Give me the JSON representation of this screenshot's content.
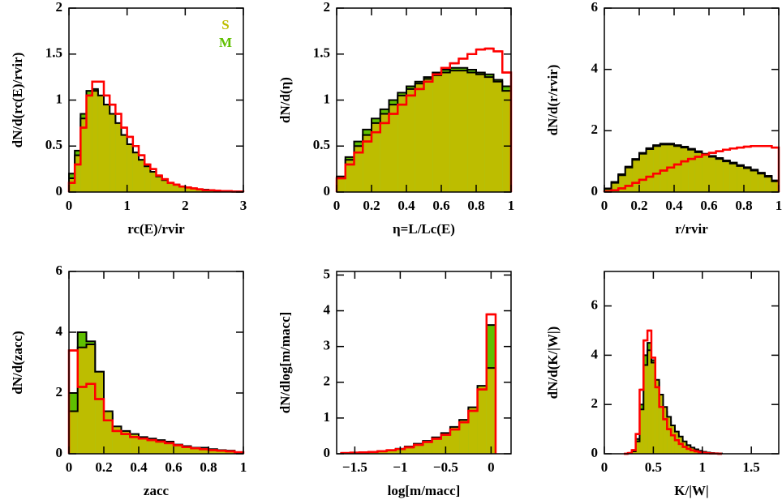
{
  "chart_data": [
    {
      "type": "histogram",
      "xlabel": "rc(E)/rvir",
      "ylabel": "dN/d(rc(E)/rvir)",
      "legend": "upper right",
      "xlim": [
        0,
        3
      ],
      "ylim": [
        0,
        2
      ],
      "xticks": [
        0,
        1,
        2,
        3
      ],
      "yticks": [
        0,
        0.5,
        1,
        1.5,
        2
      ],
      "bins": [
        0,
        0.1,
        0.2,
        0.3,
        0.4,
        0.5,
        0.6,
        0.7,
        0.8,
        0.9,
        1,
        1.1,
        1.2,
        1.3,
        1.4,
        1.5,
        1.6,
        1.7,
        1.8,
        1.9,
        2,
        2.1,
        2.2,
        2.3,
        2.4,
        2.5,
        2.6,
        2.7,
        2.8,
        2.9,
        3
      ],
      "series": [
        {
          "name": "M",
          "color": "#5fbf00",
          "outline": "#000000",
          "fill": true,
          "values": [
            0.2,
            0.45,
            0.85,
            1.1,
            1.12,
            1.05,
            0.95,
            0.85,
            0.74,
            0.62,
            0.52,
            0.43,
            0.35,
            0.28,
            0.22,
            0.17,
            0.13,
            0.1,
            0.08,
            0.06,
            0.05,
            0.04,
            0.03,
            0.025,
            0.02,
            0.015,
            0.01,
            0.01,
            0.005,
            0.005
          ]
        },
        {
          "name": "S",
          "color": "#bdbd00",
          "outline": "#000000",
          "fill": true,
          "values": [
            0.15,
            0.4,
            0.8,
            1.05,
            1.1,
            1.05,
            0.95,
            0.85,
            0.75,
            0.62,
            0.52,
            0.43,
            0.35,
            0.28,
            0.22,
            0.17,
            0.13,
            0.1,
            0.08,
            0.06,
            0.05,
            0.04,
            0.03,
            0.025,
            0.02,
            0.015,
            0.01,
            0.01,
            0.005,
            0.005
          ]
        },
        {
          "color": "#ff0000",
          "fill": false,
          "values": [
            0.1,
            0.3,
            0.7,
            1.05,
            1.2,
            1.2,
            1.05,
            0.95,
            0.85,
            0.7,
            0.6,
            0.5,
            0.4,
            0.3,
            0.25,
            0.18,
            0.14,
            0.1,
            0.08,
            0.06,
            0.05,
            0.04,
            0.03,
            0.02,
            0.02,
            0.015,
            0.01,
            0.01,
            0.005,
            0.005
          ]
        }
      ]
    },
    {
      "type": "histogram",
      "xlabel": "η=L/Lc(E)",
      "ylabel": "dN/d(η)",
      "xlim": [
        0,
        1
      ],
      "ylim": [
        0,
        2
      ],
      "xticks": [
        0,
        0.2,
        0.4,
        0.6,
        0.8,
        1
      ],
      "yticks": [
        0,
        0.5,
        1,
        1.5,
        2
      ],
      "bins": [
        0,
        0.05,
        0.1,
        0.15,
        0.2,
        0.25,
        0.3,
        0.35,
        0.4,
        0.45,
        0.5,
        0.55,
        0.6,
        0.65,
        0.7,
        0.75,
        0.8,
        0.85,
        0.9,
        0.95,
        1
      ],
      "series": [
        {
          "name": "M",
          "color": "#5fbf00",
          "outline": "#000000",
          "fill": true,
          "values": [
            0.17,
            0.38,
            0.55,
            0.68,
            0.8,
            0.9,
            1.0,
            1.08,
            1.15,
            1.2,
            1.25,
            1.3,
            1.33,
            1.35,
            1.35,
            1.33,
            1.3,
            1.28,
            1.22,
            1.15
          ]
        },
        {
          "name": "S",
          "color": "#bdbd00",
          "outline": "#000000",
          "fill": true,
          "values": [
            0.15,
            0.35,
            0.5,
            0.62,
            0.75,
            0.85,
            0.95,
            1.05,
            1.12,
            1.18,
            1.23,
            1.27,
            1.3,
            1.32,
            1.32,
            1.3,
            1.28,
            1.25,
            1.2,
            1.1
          ]
        },
        {
          "color": "#ff0000",
          "fill": false,
          "values": [
            0.15,
            0.3,
            0.43,
            0.55,
            0.65,
            0.75,
            0.85,
            0.95,
            1.05,
            1.12,
            1.2,
            1.28,
            1.35,
            1.4,
            1.45,
            1.5,
            1.55,
            1.56,
            1.53,
            1.3
          ]
        }
      ]
    },
    {
      "type": "histogram",
      "xlabel": "r/rvir",
      "ylabel": "dN/d(r/rvir)",
      "xlim": [
        0,
        1
      ],
      "ylim": [
        0,
        6
      ],
      "xticks": [
        0,
        0.2,
        0.4,
        0.6,
        0.8,
        1
      ],
      "yticks": [
        0,
        2,
        4,
        6
      ],
      "bins": [
        0,
        0.04,
        0.08,
        0.12,
        0.16,
        0.2,
        0.24,
        0.28,
        0.32,
        0.36,
        0.4,
        0.44,
        0.48,
        0.52,
        0.56,
        0.6,
        0.64,
        0.68,
        0.72,
        0.76,
        0.8,
        0.84,
        0.88,
        0.92,
        0.96,
        1
      ],
      "series": [
        {
          "name": "M",
          "color": "#5fbf00",
          "outline": "#000000",
          "fill": true,
          "values": [
            0.12,
            0.33,
            0.58,
            0.83,
            1.08,
            1.28,
            1.43,
            1.53,
            1.58,
            1.58,
            1.53,
            1.48,
            1.41,
            1.33,
            1.25,
            1.18,
            1.11,
            1.03,
            0.96,
            0.88,
            0.81,
            0.73,
            0.63,
            0.53,
            0.38
          ]
        },
        {
          "name": "S",
          "color": "#bdbd00",
          "outline": "#000000",
          "fill": true,
          "values": [
            0.1,
            0.3,
            0.55,
            0.8,
            1.05,
            1.25,
            1.4,
            1.5,
            1.55,
            1.55,
            1.5,
            1.45,
            1.38,
            1.3,
            1.22,
            1.15,
            1.08,
            1.0,
            0.93,
            0.85,
            0.78,
            0.7,
            0.6,
            0.5,
            0.35
          ]
        },
        {
          "color": "#ff0000",
          "fill": false,
          "values": [
            0.02,
            0.06,
            0.12,
            0.2,
            0.3,
            0.4,
            0.5,
            0.6,
            0.7,
            0.8,
            0.9,
            1.0,
            1.08,
            1.15,
            1.22,
            1.28,
            1.33,
            1.38,
            1.42,
            1.45,
            1.48,
            1.5,
            1.5,
            1.5,
            1.45
          ]
        }
      ]
    },
    {
      "type": "histogram",
      "xlabel": "zacc",
      "ylabel": "dN/d(zacc)",
      "xlim": [
        0,
        1
      ],
      "ylim": [
        0,
        6
      ],
      "xticks": [
        0,
        0.2,
        0.4,
        0.6,
        0.8,
        1
      ],
      "yticks": [
        0,
        2,
        4,
        6
      ],
      "bins": [
        0,
        0.05,
        0.1,
        0.15,
        0.2,
        0.25,
        0.3,
        0.35,
        0.4,
        0.45,
        0.5,
        0.55,
        0.6,
        0.65,
        0.7,
        0.75,
        0.8,
        0.85,
        0.9,
        0.95,
        1
      ],
      "series": [
        {
          "name": "M",
          "color": "#5fbf00",
          "outline": "#000000",
          "fill": true,
          "values": [
            2.0,
            4.0,
            3.7,
            2.7,
            1.3,
            0.85,
            0.7,
            0.6,
            0.5,
            0.48,
            0.43,
            0.38,
            0.3,
            0.25,
            0.2,
            0.18,
            0.15,
            0.12,
            0.1,
            0.05
          ]
        },
        {
          "name": "S",
          "color": "#bdbd00",
          "outline": "#000000",
          "fill": true,
          "values": [
            1.4,
            3.5,
            3.6,
            2.7,
            1.4,
            0.9,
            0.75,
            0.65,
            0.55,
            0.5,
            0.45,
            0.4,
            0.3,
            0.25,
            0.2,
            0.2,
            0.15,
            0.12,
            0.1,
            0.05
          ]
        },
        {
          "color": "#ff0000",
          "fill": false,
          "values": [
            3.4,
            2.2,
            2.3,
            1.8,
            1.1,
            0.75,
            0.65,
            0.55,
            0.5,
            0.45,
            0.4,
            0.35,
            0.28,
            0.22,
            0.18,
            0.15,
            0.12,
            0.1,
            0.08,
            0.05
          ]
        }
      ]
    },
    {
      "type": "histogram",
      "xlabel": "log[m/macc]",
      "ylabel": "dN/dlog[m/macc]",
      "xlim": [
        -1.7,
        0.22
      ],
      "ylim": [
        0,
        5.1
      ],
      "xticks": [
        {
          "value": -1.5,
          "label": "−1.5"
        },
        {
          "value": -1,
          "label": "−1"
        },
        {
          "value": -0.5,
          "label": "−0.5"
        },
        0
      ],
      "yticks": [
        0,
        1,
        2,
        3,
        4,
        5
      ],
      "bins": [
        -1.65,
        -1.55,
        -1.45,
        -1.35,
        -1.25,
        -1.15,
        -1.05,
        -0.95,
        -0.85,
        -0.75,
        -0.65,
        -0.55,
        -0.45,
        -0.35,
        -0.25,
        -0.15,
        -0.05,
        0.05
      ],
      "series": [
        {
          "name": "M",
          "color": "#5fbf00",
          "outline": "#000000",
          "fill": true,
          "values": [
            0.02,
            0.03,
            0.04,
            0.05,
            0.07,
            0.1,
            0.14,
            0.2,
            0.27,
            0.35,
            0.45,
            0.56,
            0.72,
            0.92,
            1.25,
            1.85,
            3.6
          ]
        },
        {
          "name": "S",
          "color": "#bdbd00",
          "outline": "#000000",
          "fill": true,
          "values": [
            0.02,
            0.03,
            0.04,
            0.05,
            0.07,
            0.1,
            0.14,
            0.2,
            0.28,
            0.36,
            0.46,
            0.58,
            0.75,
            0.95,
            1.3,
            1.9,
            2.4
          ]
        },
        {
          "color": "#ff0000",
          "fill": false,
          "values": [
            0.02,
            0.03,
            0.04,
            0.05,
            0.07,
            0.1,
            0.13,
            0.18,
            0.25,
            0.33,
            0.42,
            0.53,
            0.68,
            0.88,
            1.2,
            1.8,
            3.9
          ]
        }
      ]
    },
    {
      "type": "histogram",
      "xlabel": "K/|W|",
      "ylabel": "dN/d(K/|W|)",
      "xlim": [
        0,
        1.78
      ],
      "ylim": [
        0,
        7.4
      ],
      "xticks": [
        0,
        0.5,
        1,
        1.5
      ],
      "yticks": [
        0,
        2,
        4,
        6
      ],
      "bins": [
        0.2,
        0.24,
        0.28,
        0.32,
        0.36,
        0.4,
        0.44,
        0.48,
        0.52,
        0.56,
        0.6,
        0.64,
        0.68,
        0.72,
        0.76,
        0.8,
        0.84,
        0.88,
        0.92,
        0.96,
        1,
        1.04,
        1.08,
        1.12,
        1.16,
        1.2
      ],
      "series": [
        {
          "name": "M",
          "color": "#5fbf00",
          "outline": "#000000",
          "fill": true,
          "values": [
            0,
            0.02,
            0.12,
            0.6,
            2.0,
            4.0,
            4.5,
            3.8,
            2.9,
            2.2,
            1.7,
            1.3,
            1.0,
            0.75,
            0.55,
            0.4,
            0.28,
            0.2,
            0.14,
            0.1,
            0.06,
            0.04,
            0.02,
            0.01,
            0.01
          ]
        },
        {
          "name": "S",
          "color": "#bdbd00",
          "outline": "#000000",
          "fill": true,
          "values": [
            0,
            0.02,
            0.1,
            0.5,
            1.8,
            3.6,
            4.2,
            3.7,
            3.0,
            2.4,
            1.9,
            1.5,
            1.15,
            0.9,
            0.7,
            0.5,
            0.35,
            0.25,
            0.18,
            0.12,
            0.08,
            0.05,
            0.03,
            0.02,
            0.01
          ]
        },
        {
          "color": "#ff0000",
          "fill": false,
          "values": [
            0,
            0.03,
            0.15,
            0.8,
            2.6,
            4.6,
            5.0,
            3.9,
            2.7,
            1.9,
            1.4,
            1.0,
            0.75,
            0.55,
            0.4,
            0.28,
            0.2,
            0.14,
            0.1,
            0.06,
            0.04,
            0.02,
            0.01,
            0.01,
            0
          ]
        }
      ]
    }
  ]
}
